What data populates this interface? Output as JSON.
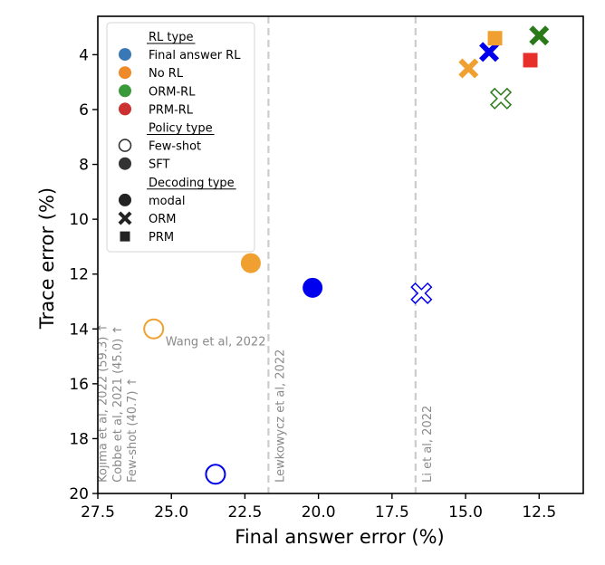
{
  "chart_data": {
    "type": "scatter",
    "xlabel": "Final answer error (%)",
    "ylabel": "Trace error (%)",
    "xlim": [
      27.5,
      11.0
    ],
    "ylim": [
      20.0,
      2.6
    ],
    "x_inverted": true,
    "y_inverted": true,
    "xticks": [
      27.5,
      25.0,
      22.5,
      20.0,
      17.5,
      15.0,
      12.5
    ],
    "xtick_labels": [
      "27.5",
      "25.0",
      "22.5",
      "20.0",
      "17.5",
      "15.0",
      "12.5"
    ],
    "yticks": [
      4,
      6,
      8,
      10,
      12,
      14,
      16,
      18,
      20
    ],
    "ytick_labels": [
      "4",
      "6",
      "8",
      "10",
      "12",
      "14",
      "16",
      "18",
      "20"
    ],
    "grid": false,
    "legend_position": "upper-left",
    "colors": {
      "final_answer_rl": "#0000ee",
      "no_rl": "#f0a030",
      "orm_rl": "#2a7a1a",
      "prm_rl": "#e8302a",
      "reference_line": "#cccccc",
      "annotation": "#8a8a8a"
    },
    "points": [
      {
        "x": 25.6,
        "y": 14.0,
        "rl_type": "No RL",
        "policy": "Few-shot",
        "decoding": "modal"
      },
      {
        "x": 23.5,
        "y": 19.3,
        "rl_type": "Final answer RL",
        "policy": "Few-shot",
        "decoding": "modal"
      },
      {
        "x": 22.3,
        "y": 11.6,
        "rl_type": "No RL",
        "policy": "SFT",
        "decoding": "modal"
      },
      {
        "x": 20.2,
        "y": 12.5,
        "rl_type": "Final answer RL",
        "policy": "SFT",
        "decoding": "modal"
      },
      {
        "x": 16.5,
        "y": 12.7,
        "rl_type": "Final answer RL",
        "policy": "Few-shot",
        "decoding": "ORM"
      },
      {
        "x": 14.9,
        "y": 4.5,
        "rl_type": "No RL",
        "policy": "SFT",
        "decoding": "ORM"
      },
      {
        "x": 14.2,
        "y": 3.9,
        "rl_type": "Final answer RL",
        "policy": "SFT",
        "decoding": "ORM"
      },
      {
        "x": 14.0,
        "y": 3.4,
        "rl_type": "No RL",
        "policy": "SFT",
        "decoding": "PRM"
      },
      {
        "x": 13.8,
        "y": 5.6,
        "rl_type": "ORM-RL",
        "policy": "Few-shot",
        "decoding": "ORM"
      },
      {
        "x": 12.8,
        "y": 4.2,
        "rl_type": "PRM-RL",
        "policy": "SFT",
        "decoding": "PRM"
      },
      {
        "x": 12.5,
        "y": 3.3,
        "rl_type": "ORM-RL",
        "policy": "SFT",
        "decoding": "ORM"
      }
    ],
    "reference_lines": [
      {
        "x": 21.7,
        "label": "Lewkowycz et al, 2022"
      },
      {
        "x": 16.7,
        "label": "Li et al, 2022"
      }
    ],
    "annotations": [
      {
        "text": "Wang et al, 2022",
        "x": 25.2,
        "y": 14.6,
        "rotate": false
      },
      {
        "text": "Kojima et al, 2022 (59.3) ↑",
        "x": 27.2,
        "y": 19.6,
        "rotate": true
      },
      {
        "text": "Cobbe et al, 2021 (45.0) ↑",
        "x": 26.7,
        "y": 19.6,
        "rotate": true
      },
      {
        "text": "Few-shot (40.7) ↑",
        "x": 26.2,
        "y": 19.6,
        "rotate": true
      }
    ],
    "legend": {
      "sections": [
        {
          "title": "RL type",
          "items": [
            {
              "label": "Final answer RL",
              "marker": "circle",
              "color": "#3a78b5",
              "filled": true
            },
            {
              "label": "No RL",
              "marker": "circle",
              "color": "#ee8a2a",
              "filled": true
            },
            {
              "label": "ORM-RL",
              "marker": "circle",
              "color": "#3a9a3a",
              "filled": true
            },
            {
              "label": "PRM-RL",
              "marker": "circle",
              "color": "#cc3030",
              "filled": true
            }
          ]
        },
        {
          "title": "Policy type",
          "items": [
            {
              "label": "Few-shot",
              "marker": "circle",
              "color": "#333333",
              "filled": false
            },
            {
              "label": "SFT",
              "marker": "circle",
              "color": "#333333",
              "filled": true
            }
          ]
        },
        {
          "title": "Decoding type",
          "items": [
            {
              "label": "modal",
              "marker": "circle",
              "color": "#222222",
              "filled": true
            },
            {
              "label": "ORM",
              "marker": "x",
              "color": "#222222",
              "filled": true
            },
            {
              "label": "PRM",
              "marker": "square",
              "color": "#222222",
              "filled": true
            }
          ]
        }
      ]
    }
  }
}
